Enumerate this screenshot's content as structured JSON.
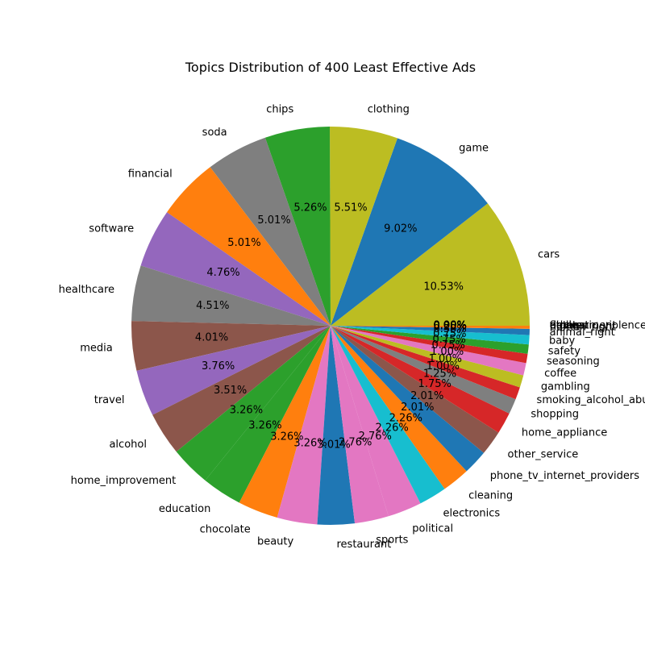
{
  "chart_data": {
    "type": "pie",
    "title": "Topics Distribution of 400 Least Effective Ads",
    "label_format": "%",
    "slices": [
      {
        "label": "cars",
        "value": 10.5,
        "color": "#bcbd22"
      },
      {
        "label": "game",
        "value": 9.0,
        "color": "#1f77b4"
      },
      {
        "label": "clothing",
        "value": 5.5,
        "color": "#bcbd22"
      },
      {
        "label": "chips",
        "value": 5.25,
        "color": "#2ca02c"
      },
      {
        "label": "soda",
        "value": 5.0,
        "color": "#7f7f7f"
      },
      {
        "label": "financial",
        "value": 5.0,
        "color": "#ff7f0e"
      },
      {
        "label": "software",
        "value": 4.75,
        "color": "#9467bd"
      },
      {
        "label": "healthcare",
        "value": 4.5,
        "color": "#7f7f7f"
      },
      {
        "label": "media",
        "value": 4.0,
        "color": "#8c564b"
      },
      {
        "label": "travel",
        "value": 3.75,
        "color": "#9467bd"
      },
      {
        "label": "alcohol",
        "value": 3.5,
        "color": "#8c564b"
      },
      {
        "label": "home_improvement",
        "value": 3.25,
        "color": "#2ca02c"
      },
      {
        "label": "education",
        "value": 3.25,
        "color": "#2ca02c"
      },
      {
        "label": "chocolate",
        "value": 3.25,
        "color": "#ff7f0e"
      },
      {
        "label": "beauty",
        "value": 3.25,
        "color": "#e377c2"
      },
      {
        "label": "restaurant",
        "value": 3.0,
        "color": "#1f77b4"
      },
      {
        "label": "sports",
        "value": 2.75,
        "color": "#e377c2"
      },
      {
        "label": "political",
        "value": 2.75,
        "color": "#e377c2"
      },
      {
        "label": "electronics",
        "value": 2.25,
        "color": "#17becf"
      },
      {
        "label": "cleaning",
        "value": 2.25,
        "color": "#ff7f0e"
      },
      {
        "label": "phone_tv_internet_providers",
        "value": 2.0,
        "color": "#1f77b4"
      },
      {
        "label": "other_service",
        "value": 2.0,
        "color": "#8c564b"
      },
      {
        "label": "home_appliance",
        "value": 1.75,
        "color": "#d62728"
      },
      {
        "label": "shopping",
        "value": 1.25,
        "color": "#7f7f7f"
      },
      {
        "label": "smoking_alcohol_abuse",
        "value": 1.0,
        "color": "#d62728"
      },
      {
        "label": "gambling",
        "value": 1.0,
        "color": "#bcbd22"
      },
      {
        "label": "coffee",
        "value": 1.0,
        "color": "#e377c2"
      },
      {
        "label": "seasoning",
        "value": 0.75,
        "color": "#d62728"
      },
      {
        "label": "safety",
        "value": 0.75,
        "color": "#2ca02c"
      },
      {
        "label": "baby",
        "value": 0.75,
        "color": "#17becf"
      },
      {
        "label": "animal_right",
        "value": 0.5,
        "color": "#1f77b4"
      },
      {
        "label": "human_right",
        "value": 0.25,
        "color": "#ff7f0e"
      },
      {
        "label": "flights",
        "value": 0.0,
        "color": "#2ca02c"
      },
      {
        "label": "pet",
        "value": 0.0,
        "color": "#d62728"
      },
      {
        "label": "domestic_violence",
        "value": 0.0,
        "color": "#9467bd"
      },
      {
        "label": "environment",
        "value": 0.0,
        "color": "#8c564b"
      },
      {
        "label": "other",
        "value": 0.0,
        "color": "#e377c2"
      },
      {
        "label": "unclear",
        "value": 0.0,
        "color": "#7f7f7f"
      }
    ]
  }
}
